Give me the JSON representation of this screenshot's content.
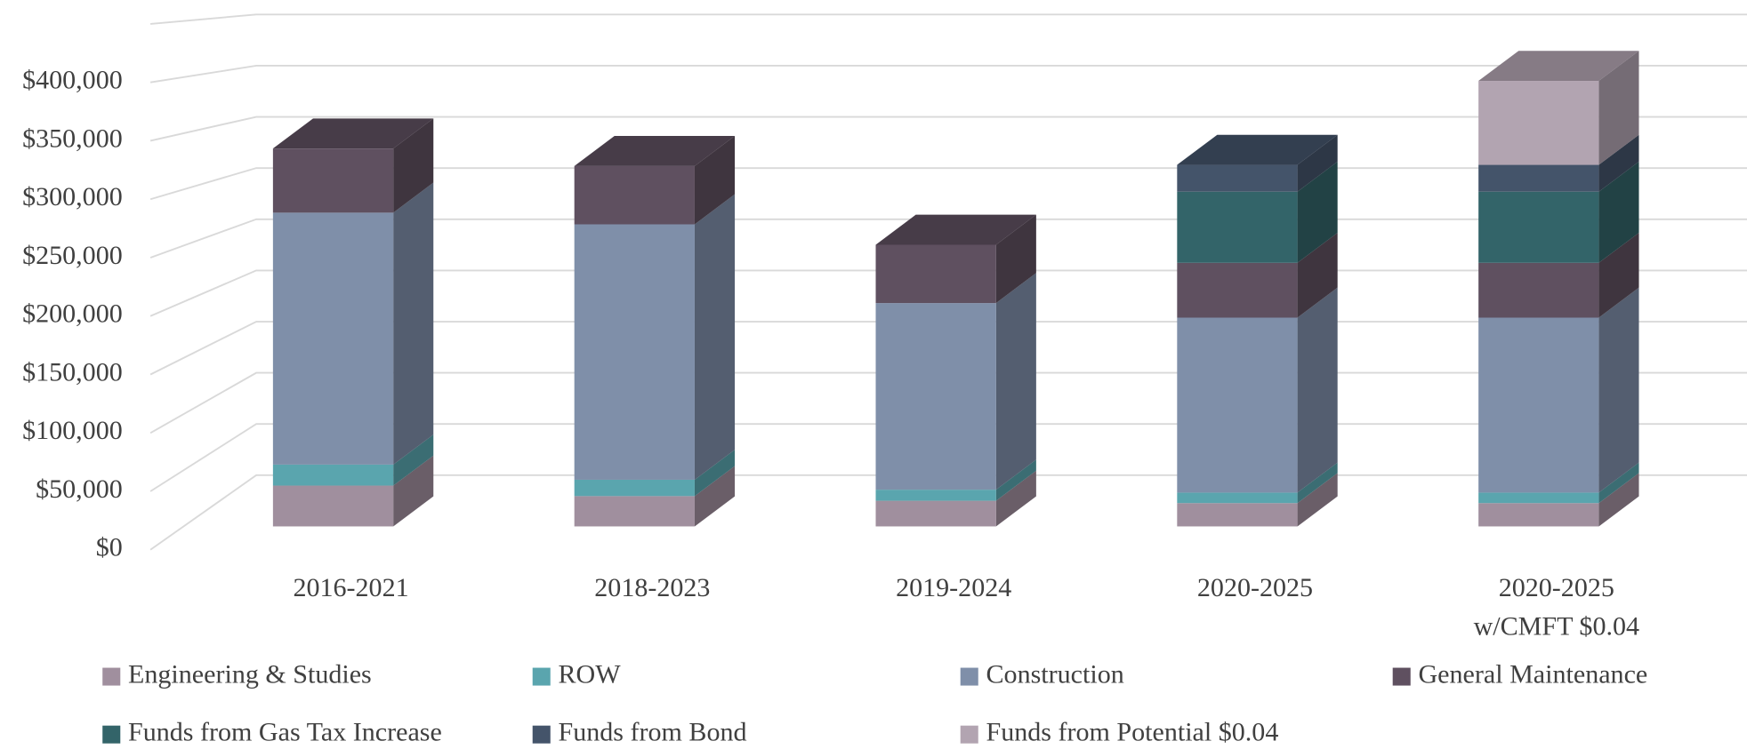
{
  "chart_data": {
    "type": "bar3d_stacked",
    "categories": [
      "2016-2021",
      "2018-2023",
      "2019-2024",
      "2020-2025",
      "2020-2025 w/CMFT $0.04"
    ],
    "series": [
      {
        "name": "Engineering & Studies",
        "color": "#a08f9e",
        "values": [
          35000,
          26000,
          22000,
          20000,
          20000
        ]
      },
      {
        "name": "ROW",
        "color": "#5aa5ae",
        "values": [
          18000,
          14000,
          9500,
          9000,
          9000
        ]
      },
      {
        "name": "Construction",
        "color": "#7f8fa9",
        "values": [
          216000,
          219000,
          160000,
          150000,
          150000
        ]
      },
      {
        "name": "General Maintenance",
        "color": "#5f5060",
        "values": [
          55000,
          50000,
          50000,
          47000,
          47000
        ]
      },
      {
        "name": "Funds from Gas Tax Increase",
        "color": "#336469",
        "values": [
          null,
          null,
          null,
          61000,
          61000
        ]
      },
      {
        "name": "Funds from Bond",
        "color": "#44546a",
        "values": [
          null,
          null,
          null,
          23000,
          23000
        ]
      },
      {
        "name": "Funds from Potential $0.04",
        "color": "#b2a4b1",
        "values": [
          null,
          null,
          null,
          null,
          72000
        ]
      }
    ],
    "ylim": [
      0,
      450000
    ],
    "yticks": [
      {
        "value": 0,
        "label": "$0"
      },
      {
        "value": 50000,
        "label": "$50,000"
      },
      {
        "value": 100000,
        "label": "$100,000"
      },
      {
        "value": 150000,
        "label": "$150,000"
      },
      {
        "value": 200000,
        "label": "$200,000"
      },
      {
        "value": 250000,
        "label": "$250,000"
      },
      {
        "value": 300000,
        "label": "$300,000"
      },
      {
        "value": 350000,
        "label": "$350,000"
      },
      {
        "value": 400000,
        "label": "$400,000"
      }
    ],
    "grid": true,
    "legend": "bottom"
  }
}
